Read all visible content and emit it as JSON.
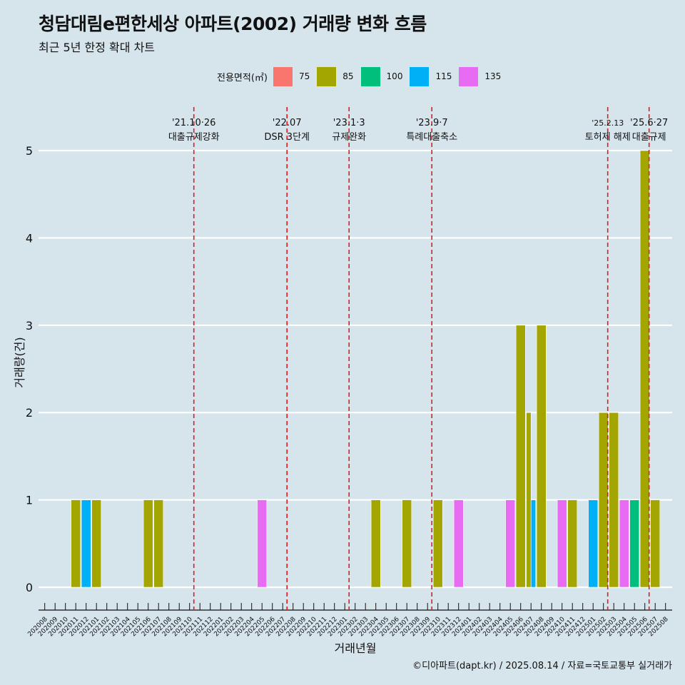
{
  "title": "청담대림e편한세상 아파트(2002) 거래량 변화 흐름",
  "subtitle": "최근 5년 한정 확대 차트",
  "legend": {
    "title": "전용면적(㎡)",
    "items": [
      {
        "label": "75",
        "color": "#f8766d"
      },
      {
        "label": "85",
        "color": "#a3a500"
      },
      {
        "label": "100",
        "color": "#00bf7d"
      },
      {
        "label": "115",
        "color": "#00b0f6"
      },
      {
        "label": "135",
        "color": "#e76bf3"
      }
    ]
  },
  "caption": "©디아파트(dapt.kr) / 2025.08.14 / 자료=국토교통부 실거래가",
  "chart_data": {
    "type": "bar",
    "xlabel": "거래년월",
    "ylabel": "거래량(건)",
    "ylim": [
      0,
      5
    ],
    "yticks": [
      0,
      1,
      2,
      3,
      4,
      5
    ],
    "grid": "horizontal",
    "legend_position": "top",
    "categories": [
      "202008",
      "202009",
      "202010",
      "202011",
      "202012",
      "202101",
      "202102",
      "202103",
      "202104",
      "202105",
      "202106",
      "202107",
      "202108",
      "202109",
      "202110",
      "202111",
      "202112",
      "202201",
      "202202",
      "202203",
      "202204",
      "202205",
      "202206",
      "202207",
      "202208",
      "202209",
      "202210",
      "202211",
      "202212",
      "202301",
      "202302",
      "202303",
      "202304",
      "202305",
      "202306",
      "202307",
      "202308",
      "202309",
      "202310",
      "202311",
      "202312",
      "202401",
      "202402",
      "202403",
      "202404",
      "202405",
      "202406",
      "202407",
      "202408",
      "202409",
      "202410",
      "202411",
      "202412",
      "202501",
      "202502",
      "202503",
      "202504",
      "202505",
      "202506",
      "202507",
      "202508"
    ],
    "bars": [
      {
        "month": "202011",
        "area": "85",
        "value": 1
      },
      {
        "month": "202012",
        "area": "115",
        "value": 1
      },
      {
        "month": "202101",
        "area": "85",
        "value": 1
      },
      {
        "month": "202106",
        "area": "85",
        "value": 1
      },
      {
        "month": "202107",
        "area": "85",
        "value": 1
      },
      {
        "month": "202205",
        "area": "135",
        "value": 1
      },
      {
        "month": "202304",
        "area": "85",
        "value": 1
      },
      {
        "month": "202307",
        "area": "85",
        "value": 1
      },
      {
        "month": "202310",
        "area": "85",
        "value": 1
      },
      {
        "month": "202312",
        "area": "135",
        "value": 1
      },
      {
        "month": "202405",
        "area": "135",
        "value": 1
      },
      {
        "month": "202406",
        "area": "85",
        "value": 3
      },
      {
        "month": "202407",
        "area": "85",
        "value": 2
      },
      {
        "month": "202407",
        "area": "115",
        "value": 1
      },
      {
        "month": "202408",
        "area": "85",
        "value": 3
      },
      {
        "month": "202410",
        "area": "135",
        "value": 1
      },
      {
        "month": "202411",
        "area": "85",
        "value": 1
      },
      {
        "month": "202501",
        "area": "115",
        "value": 1
      },
      {
        "month": "202502",
        "area": "85",
        "value": 2
      },
      {
        "month": "202503",
        "area": "85",
        "value": 2
      },
      {
        "month": "202504",
        "area": "135",
        "value": 1
      },
      {
        "month": "202505",
        "area": "100",
        "value": 1
      },
      {
        "month": "202506",
        "area": "85",
        "value": 5
      },
      {
        "month": "202507",
        "area": "85",
        "value": 1
      }
    ],
    "annotations": [
      {
        "month": "202110",
        "date": "'21.10·26",
        "label": "대출규제강화"
      },
      {
        "month": "202207",
        "date": "'22.07",
        "label": "DSR 3단계"
      },
      {
        "month": "202301",
        "date": "'23.1·3",
        "label": "규제완화"
      },
      {
        "month": "202309",
        "date": "'23.9·7",
        "label": "특례대출축소"
      },
      {
        "month": "202502",
        "date": "'25.2.13",
        "label": "토허제 해제"
      },
      {
        "month": "202506",
        "date": "'25.6·27",
        "label": "대출규제"
      }
    ],
    "event_line_color": "#e41a1c"
  }
}
